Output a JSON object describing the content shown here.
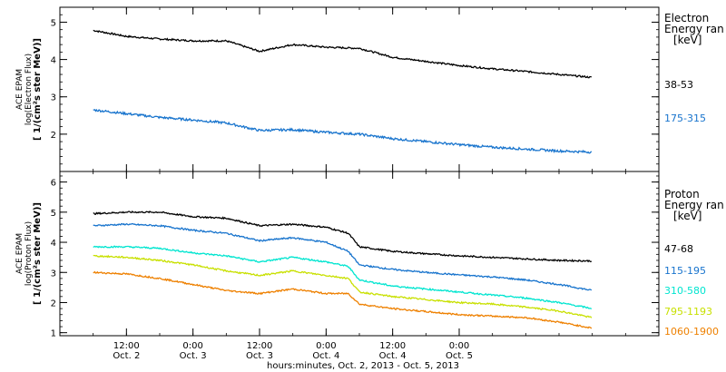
{
  "chart_data": [
    {
      "type": "line",
      "ylabel_lines": [
        "ACE EPAM",
        "log(Electron Flux)",
        "[ 1/(cm²s ster MeV)]"
      ],
      "ylim": [
        1,
        5.4
      ],
      "yticks": [
        2,
        3,
        4,
        5
      ],
      "legend_title_lines": [
        "Electron",
        "Energy ran",
        "[keV]"
      ],
      "x": [
        0,
        6,
        12,
        18,
        24,
        30,
        36,
        42,
        48,
        54,
        60,
        66,
        72,
        78,
        84,
        90
      ],
      "series": [
        {
          "name": "38-53",
          "color": "#000000",
          "noise": 0.022,
          "values": [
            4.78,
            4.62,
            4.55,
            4.5,
            4.5,
            4.22,
            4.4,
            4.33,
            4.3,
            4.06,
            3.95,
            3.84,
            3.75,
            3.68,
            3.6,
            3.52
          ]
        },
        {
          "name": "175-315",
          "color": "#1874cd",
          "noise": 0.03,
          "values": [
            2.65,
            2.55,
            2.45,
            2.38,
            2.3,
            2.1,
            2.12,
            2.05,
            2.0,
            1.88,
            1.8,
            1.72,
            1.65,
            1.6,
            1.55,
            1.52
          ]
        }
      ]
    },
    {
      "type": "line",
      "ylabel_lines": [
        "ACE EPAM",
        "log(Proton Flux)",
        "[ 1/(cm²s ster MeV)]"
      ],
      "ylim": [
        0.9,
        6.35
      ],
      "yticks": [
        1,
        2,
        3,
        4,
        5,
        6
      ],
      "legend_title_lines": [
        "Proton",
        "Energy ran",
        "[keV]"
      ],
      "x": [
        0,
        6,
        12,
        18,
        24,
        30,
        36,
        42,
        46,
        48,
        54,
        60,
        66,
        72,
        78,
        84,
        90
      ],
      "series": [
        {
          "name": "47-68",
          "color": "#000000",
          "noise": 0.025,
          "values": [
            4.95,
            5.0,
            5.0,
            4.85,
            4.8,
            4.55,
            4.6,
            4.5,
            4.3,
            3.85,
            3.7,
            3.62,
            3.55,
            3.5,
            3.45,
            3.4,
            3.38
          ]
        },
        {
          "name": "115-195",
          "color": "#1874cd",
          "noise": 0.025,
          "values": [
            4.55,
            4.6,
            4.55,
            4.4,
            4.3,
            4.05,
            4.15,
            4.0,
            3.7,
            3.25,
            3.1,
            3.0,
            2.92,
            2.85,
            2.75,
            2.6,
            2.4
          ]
        },
        {
          "name": "310-580",
          "color": "#00e5d0",
          "noise": 0.025,
          "values": [
            3.85,
            3.85,
            3.8,
            3.65,
            3.55,
            3.35,
            3.5,
            3.35,
            3.2,
            2.75,
            2.55,
            2.45,
            2.35,
            2.25,
            2.15,
            2.0,
            1.8
          ]
        },
        {
          "name": "795-1193",
          "color": "#c8e000",
          "noise": 0.025,
          "values": [
            3.55,
            3.5,
            3.4,
            3.25,
            3.05,
            2.9,
            3.05,
            2.9,
            2.8,
            2.35,
            2.2,
            2.1,
            2.0,
            1.95,
            1.85,
            1.72,
            1.5
          ]
        },
        {
          "name": "1060-1900",
          "color": "#ee8000",
          "noise": 0.025,
          "values": [
            3.0,
            2.95,
            2.8,
            2.6,
            2.4,
            2.3,
            2.45,
            2.3,
            2.3,
            1.95,
            1.8,
            1.7,
            1.6,
            1.55,
            1.5,
            1.35,
            1.15
          ]
        }
      ]
    }
  ],
  "x_axis": {
    "xlim": [
      -6,
      102
    ],
    "major_ticks": [
      {
        "x": 6,
        "time": "12:00",
        "date": "Oct. 2"
      },
      {
        "x": 18,
        "time": "0:00",
        "date": "Oct. 3"
      },
      {
        "x": 30,
        "time": "12:00",
        "date": "Oct. 3"
      },
      {
        "x": 42,
        "time": "0:00",
        "date": "Oct. 4"
      },
      {
        "x": 54,
        "time": "12:00",
        "date": "Oct. 4"
      },
      {
        "x": 66,
        "time": "0:00",
        "date": "Oct. 5"
      }
    ],
    "minor_step": 6,
    "xlabel": "hours:minutes, Oct.  2, 2013 - Oct.  5, 2013"
  }
}
